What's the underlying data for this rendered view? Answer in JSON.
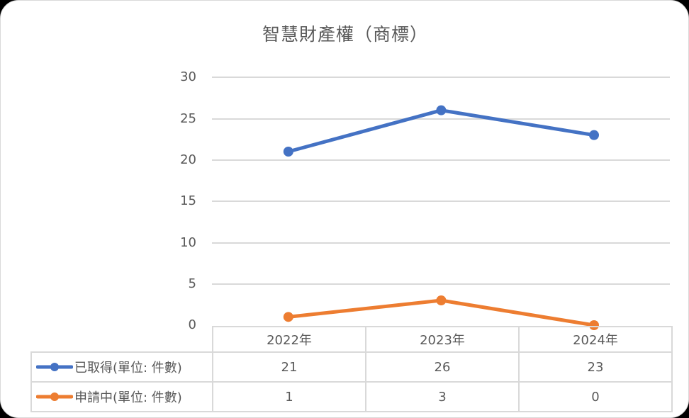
{
  "chart": {
    "title": "智慧財產權（商標）",
    "y_ticks": [
      "30",
      "25",
      "20",
      "15",
      "10",
      "5",
      "0"
    ],
    "categories": [
      "2022年",
      "2023年",
      "2024年"
    ],
    "series": [
      {
        "name": "已取得(單位: 件數)",
        "color": "#4472c4",
        "values": [
          "21",
          "26",
          "23"
        ]
      },
      {
        "name": "申請中(單位: 件數)",
        "color": "#ed7d31",
        "values": [
          "1",
          "3",
          "0"
        ]
      }
    ]
  },
  "chart_data": {
    "type": "line",
    "title": "智慧財產權（商標）",
    "categories": [
      "2022年",
      "2023年",
      "2024年"
    ],
    "series": [
      {
        "name": "已取得(單位: 件數)",
        "values": [
          21,
          26,
          23
        ],
        "color": "#4472c4"
      },
      {
        "name": "申請中(單位: 件數)",
        "values": [
          1,
          3,
          0
        ],
        "color": "#ed7d31"
      }
    ],
    "xlabel": "",
    "ylabel": "",
    "ylim": [
      0,
      30
    ],
    "yticks": [
      0,
      5,
      10,
      15,
      20,
      25,
      30
    ],
    "grid": true,
    "legend_position": "data-table",
    "data_table": true
  }
}
